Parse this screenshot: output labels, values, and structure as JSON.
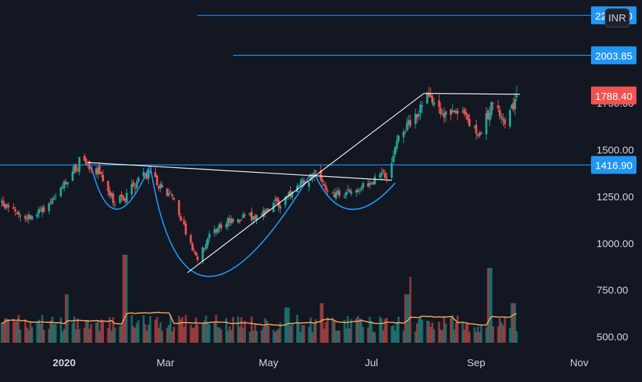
{
  "currency": "INR",
  "chart_data": {
    "type": "candlestick",
    "x_ticks": [
      {
        "label": "2020",
        "date": "2020-01-01",
        "bold": true
      },
      {
        "label": "Mar",
        "date": "2020-03-01"
      },
      {
        "label": "May",
        "date": "2020-05-01"
      },
      {
        "label": "Jul",
        "date": "2020-07-01"
      },
      {
        "label": "Sep",
        "date": "2020-09-01"
      },
      {
        "label": "Nov",
        "date": "2020-11-01"
      }
    ],
    "y_ticks": [
      "500.00",
      "750.00",
      "1000.00",
      "1250.00",
      "1500.00",
      "1750.00",
      "2000.00",
      "2250.00"
    ],
    "ylim": [
      450,
      2300
    ],
    "xlim": [
      "2019-11-24",
      "2020-11-08"
    ],
    "grid": false,
    "colors": {
      "background": "#131722",
      "up": "#26a69a",
      "down": "#ef5350",
      "horizontal_line": "#2196f3",
      "trendline": "#ffffff",
      "cup_curve": "#2196f3",
      "volume_ma": "#f7a35c",
      "axis_text": "#d1d4dc"
    },
    "price_path": [
      [
        "2019-11-24",
        1220
      ],
      [
        "2019-12-10",
        1140
      ],
      [
        "2019-12-20",
        1175
      ],
      [
        "2020-01-10",
        1430
      ],
      [
        "2020-01-22",
        1380
      ],
      [
        "2020-01-30",
        1220
      ],
      [
        "2020-02-07",
        1250
      ],
      [
        "2020-02-18",
        1380
      ],
      [
        "2020-02-25",
        1330
      ],
      [
        "2020-03-05",
        1250
      ],
      [
        "2020-03-20",
        900
      ],
      [
        "2020-03-28",
        1050
      ],
      [
        "2020-04-10",
        1130
      ],
      [
        "2020-04-25",
        1150
      ],
      [
        "2020-05-15",
        1260
      ],
      [
        "2020-05-28",
        1380
      ],
      [
        "2020-06-05",
        1250
      ],
      [
        "2020-06-25",
        1300
      ],
      [
        "2020-07-10",
        1370
      ],
      [
        "2020-07-18",
        1600
      ],
      [
        "2020-07-27",
        1680
      ],
      [
        "2020-08-02",
        1790
      ],
      [
        "2020-08-12",
        1710
      ],
      [
        "2020-08-26",
        1660
      ],
      [
        "2020-09-03",
        1560
      ],
      [
        "2020-09-10",
        1740
      ],
      [
        "2020-09-20",
        1650
      ],
      [
        "2020-09-25",
        1788.4
      ]
    ],
    "volume_spikes": [
      [
        "2020-02-06",
        1.0
      ],
      [
        "2020-07-25",
        0.75
      ],
      [
        "2020-09-09",
        0.85
      ],
      [
        "2020-07-22",
        0.55
      ],
      [
        "2020-06-01",
        0.45
      ],
      [
        "2020-05-12",
        0.4
      ],
      [
        "2020-01-03",
        0.55
      ],
      [
        "2020-09-23",
        0.45
      ]
    ],
    "horizontal_lines": [
      {
        "price": 2218.0,
        "label": "2218.00",
        "start": "2020-03-20"
      },
      {
        "price": 2003.85,
        "label": "2003.85",
        "start": "2020-04-10"
      },
      {
        "price": 1416.9,
        "label": "1416.90",
        "start": "2019-11-24"
      }
    ],
    "last_price": {
      "price": 1788.4,
      "label": "1788.40"
    },
    "trendlines": [
      {
        "from": [
          "2020-01-15",
          1430
        ],
        "to": [
          "2020-07-13",
          1335
        ]
      },
      {
        "from": [
          "2020-03-14",
          840
        ],
        "to": [
          "2020-08-01",
          1800
        ]
      },
      {
        "from": [
          "2020-08-01",
          1800
        ],
        "to": [
          "2020-09-27",
          1795
        ]
      }
    ],
    "cup_curves": [
      {
        "from": [
          "2020-01-17",
          1410
        ],
        "bottom": [
          "2020-02-01",
          1180
        ],
        "to": [
          "2020-02-20",
          1400
        ]
      },
      {
        "from": [
          "2020-02-21",
          1410
        ],
        "bottom": [
          "2020-03-26",
          820
        ],
        "to": [
          "2020-05-26",
          1370
        ]
      },
      {
        "from": [
          "2020-05-28",
          1375
        ],
        "bottom": [
          "2020-06-18",
          1180
        ],
        "to": [
          "2020-07-15",
          1320
        ]
      }
    ]
  }
}
